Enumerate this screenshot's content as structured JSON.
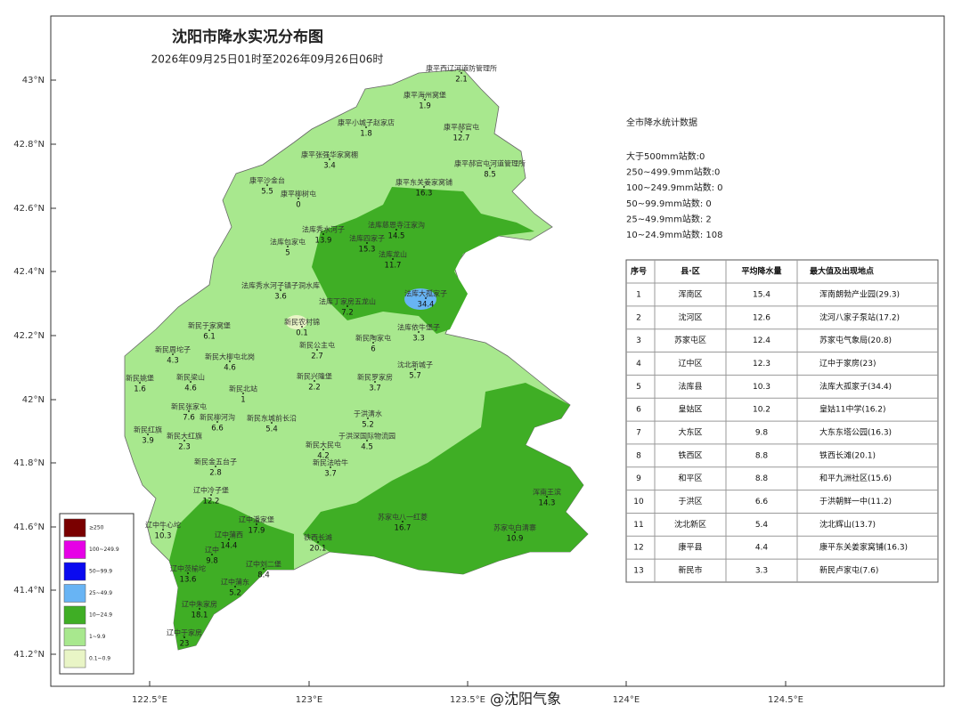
{
  "header": {
    "title": "沈阳市降水实况分布图",
    "subtitle": "2026年09月25日01时至2026年09月26日06时"
  },
  "axes": {
    "lat_ticks": [
      "43°N",
      "42.8°N",
      "42.6°N",
      "42.4°N",
      "42.2°N",
      "42°N",
      "41.8°N",
      "41.6°N",
      "41.4°N",
      "41.2°N"
    ],
    "lon_ticks": [
      "122.5°E",
      "123°E",
      "123.5°E",
      "124°E",
      "124.5°E"
    ]
  },
  "legend": [
    {
      "label": "≥250",
      "color": "#7a0000"
    },
    {
      "label": "100~249.9",
      "color": "#e600e6"
    },
    {
      "label": "50~99.9",
      "color": "#0a0af0"
    },
    {
      "label": "25~49.9",
      "color": "#68b4f4"
    },
    {
      "label": "10~24.9",
      "color": "#3fae25"
    },
    {
      "label": "1~9.9",
      "color": "#a8e88e"
    },
    {
      "label": "0.1~0.9",
      "color": "#e9f5c6"
    }
  ],
  "stats": {
    "title": "全市降水统计数据",
    "lines": [
      "大于500mm站数:0",
      "250~499.9mm站数:0",
      "100~249.9mm站数: 0",
      "50~99.9mm站数: 0",
      "25~49.9mm站数: 2",
      "10~24.9mm站数: 108"
    ]
  },
  "table": {
    "columns": [
      "序号",
      "县·区",
      "平均降水量",
      "最大值及出现地点"
    ],
    "rows": [
      [
        "1",
        "浑南区",
        "15.4",
        "浑南朗勃产业园(29.3)"
      ],
      [
        "2",
        "沈河区",
        "12.6",
        "沈河八家子泵站(17.2)"
      ],
      [
        "3",
        "苏家屯区",
        "12.4",
        "苏家屯气象局(20.8)"
      ],
      [
        "4",
        "辽中区",
        "12.3",
        "辽中于家房(23)"
      ],
      [
        "5",
        "法库县",
        "10.3",
        "法库大孤家子(34.4)"
      ],
      [
        "6",
        "皇姑区",
        "10.2",
        "皇姑11中学(16.2)"
      ],
      [
        "7",
        "大东区",
        "9.8",
        "大东东塔公园(16.3)"
      ],
      [
        "8",
        "铁西区",
        "8.8",
        "铁西长滩(20.1)"
      ],
      [
        "9",
        "和平区",
        "8.8",
        "和平九洲社区(15.6)"
      ],
      [
        "10",
        "于洪区",
        "6.6",
        "于洪朝鲜一中(11.2)"
      ],
      [
        "11",
        "沈北新区",
        "5.4",
        "沈北辉山(13.7)"
      ],
      [
        "12",
        "康平县",
        "4.4",
        "康平东关姜家窝铺(16.3)"
      ],
      [
        "13",
        "新民市",
        "3.3",
        "新民卢家屯(7.6)"
      ]
    ]
  },
  "stations": [
    {
      "name": "康平西辽河道防管理所",
      "value": "2.1"
    },
    {
      "name": "康平海州窝堡",
      "value": "1.9"
    },
    {
      "name": "康平小城子赵家店",
      "value": "1.8"
    },
    {
      "name": "康平郝官屯",
      "value": "12.7"
    },
    {
      "name": "康平张强华家窝棚",
      "value": "3.4"
    },
    {
      "name": "康平郝官屯河道管理所",
      "value": "8.5"
    },
    {
      "name": "康平沙金台",
      "value": "5.5"
    },
    {
      "name": "康平柳树屯",
      "value": "0"
    },
    {
      "name": "康平东关姜家窝铺",
      "value": "16.3"
    },
    {
      "name": "法库秀水河子",
      "value": "13.9"
    },
    {
      "name": "法库包家屯",
      "value": "5"
    },
    {
      "name": "法库四家子",
      "value": "15.3"
    },
    {
      "name": "法库慈恩寺汪家沟",
      "value": "14.5"
    },
    {
      "name": "法库龙山",
      "value": "11.7"
    },
    {
      "name": "法库秀水河子镇子洞水库",
      "value": "3.6"
    },
    {
      "name": "法库丁家房五龙山",
      "value": "7.2"
    },
    {
      "name": "法库大孤家子",
      "value": "34.4"
    },
    {
      "name": "法库依牛堡子",
      "value": "3.3"
    },
    {
      "name": "新民农村锦",
      "value": "0.1"
    },
    {
      "name": "新民于家窝堡",
      "value": "6.1"
    },
    {
      "name": "新民周坨子",
      "value": "4.3"
    },
    {
      "name": "新民公主屯",
      "value": "2.7"
    },
    {
      "name": "新民陶家屯",
      "value": "6"
    },
    {
      "name": "新民大柳屯北岗",
      "value": "4.6"
    },
    {
      "name": "新民梁山",
      "value": "4.6"
    },
    {
      "name": "新民姚堡",
      "value": "1.6"
    },
    {
      "name": "新民北站",
      "value": "1"
    },
    {
      "name": "新民兴隆堡",
      "value": "2.2"
    },
    {
      "name": "新民罗家房",
      "value": "3.7"
    },
    {
      "name": "新民张家屯",
      "value": "7.6"
    },
    {
      "name": "新民柳河沟",
      "value": "6.6"
    },
    {
      "name": "新民东城前长沿",
      "value": "5.4"
    },
    {
      "name": "新民红旗",
      "value": "3.9"
    },
    {
      "name": "新民大红旗",
      "value": "2.3"
    },
    {
      "name": "新民大民屯",
      "value": "4.2"
    },
    {
      "name": "新民金五台子",
      "value": "2.8"
    },
    {
      "name": "新民法哈牛",
      "value": "3.7"
    },
    {
      "name": "辽中牛心坨",
      "value": "10.3"
    },
    {
      "name": "辽中冷子堡",
      "value": "12.2"
    },
    {
      "name": "辽中潘家堡",
      "value": "17.9"
    },
    {
      "name": "辽中蒲西",
      "value": "14.4"
    },
    {
      "name": "辽中",
      "value": "9.8"
    },
    {
      "name": "辽中刘二堡",
      "value": "8.4"
    },
    {
      "name": "辽中茨榆坨",
      "value": "13.6"
    },
    {
      "name": "辽中蒲东",
      "value": "5.2"
    },
    {
      "name": "辽中朱家房",
      "value": "18.1"
    },
    {
      "name": "辽中于家房",
      "value": "23"
    },
    {
      "name": "铁西长滩",
      "value": "20.1"
    },
    {
      "name": "于洪清水",
      "value": "5.2"
    },
    {
      "name": "于洪深国际物流园",
      "value": "4.5"
    },
    {
      "name": "沈北新城子",
      "value": "5.7"
    },
    {
      "name": "浑南王滨",
      "value": "14.3"
    },
    {
      "name": "苏家屯白清寨",
      "value": "10.9"
    },
    {
      "name": "苏家屯八一红菱",
      "value": "16.7"
    }
  ],
  "watermark": "@沈阳气象"
}
